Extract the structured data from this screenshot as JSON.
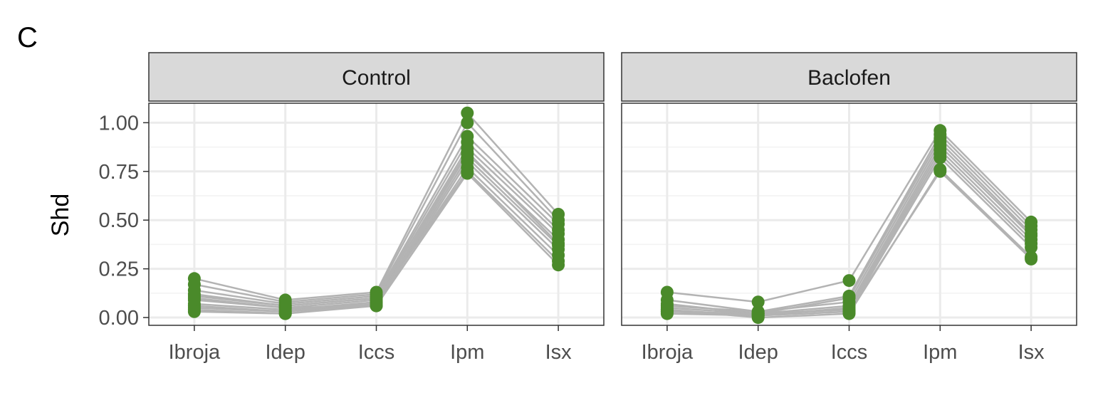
{
  "panel_label": "C",
  "chart_data": {
    "type": "line",
    "ylabel": "Shd",
    "xlabel": "",
    "categories": [
      "Ibroja",
      "Idep",
      "Iccs",
      "Ipm",
      "Isx"
    ],
    "ylim": [
      -0.04,
      1.1
    ],
    "yticks": [
      0.0,
      0.25,
      0.5,
      0.75,
      1.0
    ],
    "ytick_labels": [
      "0.00",
      "0.25",
      "0.50",
      "0.75",
      "1.00"
    ],
    "grid": true,
    "colors": {
      "line": "#b3b3b3",
      "point": "#4a8a2a",
      "strip_bg": "#d9d9d9",
      "grid_major": "#ebebeb",
      "grid_minor": "#f2f2f2"
    },
    "facets": [
      {
        "name": "Control",
        "subjects": [
          [
            0.2,
            0.09,
            0.13,
            1.05,
            0.53
          ],
          [
            0.17,
            0.08,
            0.12,
            1.0,
            0.5
          ],
          [
            0.14,
            0.07,
            0.11,
            0.93,
            0.48
          ],
          [
            0.12,
            0.06,
            0.1,
            0.9,
            0.45
          ],
          [
            0.1,
            0.05,
            0.09,
            0.87,
            0.43
          ],
          [
            0.07,
            0.04,
            0.08,
            0.84,
            0.4
          ],
          [
            0.05,
            0.03,
            0.07,
            0.82,
            0.37
          ],
          [
            0.04,
            0.02,
            0.06,
            0.8,
            0.35
          ],
          [
            0.03,
            0.02,
            0.07,
            0.77,
            0.32
          ],
          [
            0.06,
            0.03,
            0.08,
            0.75,
            0.29
          ],
          [
            0.09,
            0.05,
            0.06,
            0.74,
            0.27
          ],
          [
            0.11,
            0.06,
            0.1,
            0.85,
            0.38
          ]
        ]
      },
      {
        "name": "Baclofen",
        "subjects": [
          [
            0.13,
            0.08,
            0.19,
            0.96,
            0.49
          ],
          [
            0.09,
            0.03,
            0.11,
            0.94,
            0.47
          ],
          [
            0.07,
            0.02,
            0.1,
            0.92,
            0.45
          ],
          [
            0.06,
            0.03,
            0.08,
            0.9,
            0.43
          ],
          [
            0.05,
            0.02,
            0.06,
            0.88,
            0.42
          ],
          [
            0.04,
            0.01,
            0.05,
            0.86,
            0.4
          ],
          [
            0.03,
            0.02,
            0.04,
            0.84,
            0.38
          ],
          [
            0.02,
            0.01,
            0.03,
            0.82,
            0.36
          ],
          [
            0.04,
            0.0,
            0.02,
            0.76,
            0.31
          ],
          [
            0.03,
            0.01,
            0.03,
            0.75,
            0.3
          ]
        ]
      }
    ]
  }
}
